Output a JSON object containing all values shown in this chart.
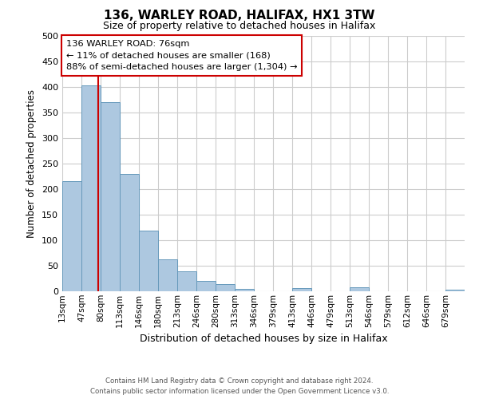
{
  "title": "136, WARLEY ROAD, HALIFAX, HX1 3TW",
  "subtitle": "Size of property relative to detached houses in Halifax",
  "xlabel": "Distribution of detached houses by size in Halifax",
  "ylabel": "Number of detached properties",
  "bin_labels": [
    "13sqm",
    "47sqm",
    "80sqm",
    "113sqm",
    "146sqm",
    "180sqm",
    "213sqm",
    "246sqm",
    "280sqm",
    "313sqm",
    "346sqm",
    "379sqm",
    "413sqm",
    "446sqm",
    "479sqm",
    "513sqm",
    "546sqm",
    "579sqm",
    "612sqm",
    "646sqm",
    "679sqm"
  ],
  "bar_values": [
    215,
    403,
    370,
    230,
    119,
    63,
    39,
    21,
    14,
    5,
    0,
    0,
    7,
    0,
    0,
    8,
    0,
    0,
    0,
    0,
    3
  ],
  "bar_color": "#adc8e0",
  "bar_edge_color": "#6699bb",
  "grid_color": "#cccccc",
  "annotation_box_color": "#cc0000",
  "property_line_color": "#cc0000",
  "property_value": 76,
  "property_label": "136 WARLEY ROAD: 76sqm",
  "annotation_line1": "← 11% of detached houses are smaller (168)",
  "annotation_line2": "88% of semi-detached houses are larger (1,304) →",
  "ylim": [
    0,
    500
  ],
  "yticks": [
    0,
    50,
    100,
    150,
    200,
    250,
    300,
    350,
    400,
    450,
    500
  ],
  "footer1": "Contains HM Land Registry data © Crown copyright and database right 2024.",
  "footer2": "Contains public sector information licensed under the Open Government Licence v3.0.",
  "bin_edges": [
    13,
    47,
    80,
    113,
    146,
    180,
    213,
    246,
    280,
    313,
    346,
    379,
    413,
    446,
    479,
    513,
    546,
    579,
    612,
    646,
    679,
    712
  ]
}
